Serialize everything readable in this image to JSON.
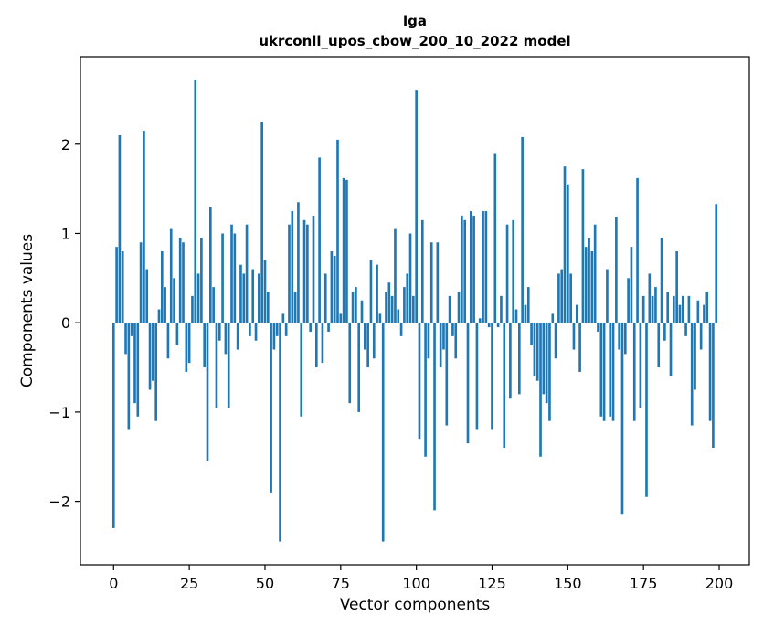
{
  "chart_data": {
    "type": "bar",
    "title": "lga",
    "subtitle": "ukrconll_upos_cbow_200_10_2022 model",
    "xlabel": "Vector components",
    "ylabel": "Components values",
    "bar_color": "#1f77b4",
    "grid": false,
    "legend": "none",
    "xlim": [
      -10.95,
      209.95
    ],
    "ylim": [
      -2.71,
      2.98
    ],
    "xticks": [
      0,
      25,
      50,
      75,
      100,
      125,
      150,
      175,
      200
    ],
    "yticks": [
      -2,
      -1,
      0,
      1,
      2
    ],
    "x_range_note": "x = component index 0..199",
    "values": [
      -2.3,
      0.85,
      2.1,
      0.8,
      -0.35,
      -1.2,
      -0.15,
      -0.9,
      -1.05,
      0.9,
      2.15,
      0.6,
      -0.75,
      -0.65,
      -1.1,
      0.15,
      0.8,
      0.4,
      -0.4,
      1.05,
      0.5,
      -0.25,
      0.95,
      0.9,
      -0.55,
      -0.45,
      0.3,
      2.72,
      0.55,
      0.95,
      -0.5,
      -1.55,
      1.3,
      0.4,
      -0.95,
      -0.2,
      1.0,
      -0.35,
      -0.95,
      1.1,
      1.0,
      -0.3,
      0.65,
      0.55,
      1.1,
      -0.15,
      0.6,
      -0.2,
      0.55,
      2.25,
      0.7,
      0.35,
      -1.9,
      -0.3,
      -0.15,
      -2.45,
      0.1,
      -0.15,
      1.1,
      1.25,
      0.35,
      1.35,
      -1.05,
      1.15,
      1.1,
      -0.1,
      1.2,
      -0.5,
      1.85,
      -0.45,
      0.55,
      -0.1,
      0.8,
      0.75,
      2.05,
      0.1,
      1.62,
      1.6,
      -0.9,
      0.35,
      0.4,
      -1.0,
      0.25,
      -0.3,
      -0.5,
      0.7,
      -0.4,
      0.65,
      0.1,
      -2.45,
      0.35,
      0.45,
      0.3,
      1.05,
      0.15,
      -0.15,
      0.4,
      0.55,
      1.0,
      0.3,
      2.6,
      -1.3,
      1.15,
      -1.5,
      -0.4,
      0.9,
      -2.1,
      0.9,
      -0.5,
      -0.3,
      -1.15,
      0.3,
      -0.15,
      -0.4,
      0.35,
      1.2,
      1.15,
      -1.35,
      1.25,
      1.2,
      -1.2,
      0.05,
      1.25,
      1.25,
      -0.05,
      -1.2,
      1.9,
      -0.05,
      0.3,
      -1.4,
      1.1,
      -0.85,
      1.15,
      0.15,
      -0.8,
      2.08,
      0.2,
      0.4,
      -0.25,
      -0.6,
      -0.65,
      -1.5,
      -0.8,
      -0.9,
      -1.1,
      0.1,
      -0.4,
      0.55,
      0.6,
      1.75,
      1.55,
      0.55,
      -0.3,
      0.2,
      -0.55,
      1.72,
      0.85,
      0.95,
      0.8,
      1.1,
      -0.1,
      -1.05,
      -1.1,
      0.6,
      -1.05,
      -1.1,
      1.18,
      -0.3,
      -2.15,
      -0.35,
      0.5,
      0.85,
      -1.1,
      1.62,
      -0.95,
      0.3,
      -1.95,
      0.55,
      0.3,
      0.4,
      -0.5,
      0.95,
      -0.2,
      0.35,
      -0.6,
      0.3,
      0.8,
      0.2,
      0.3,
      -0.15,
      0.3,
      -1.15,
      -0.75,
      0.25,
      -0.3,
      0.2,
      0.35,
      -1.1,
      -1.4,
      1.33
    ]
  }
}
